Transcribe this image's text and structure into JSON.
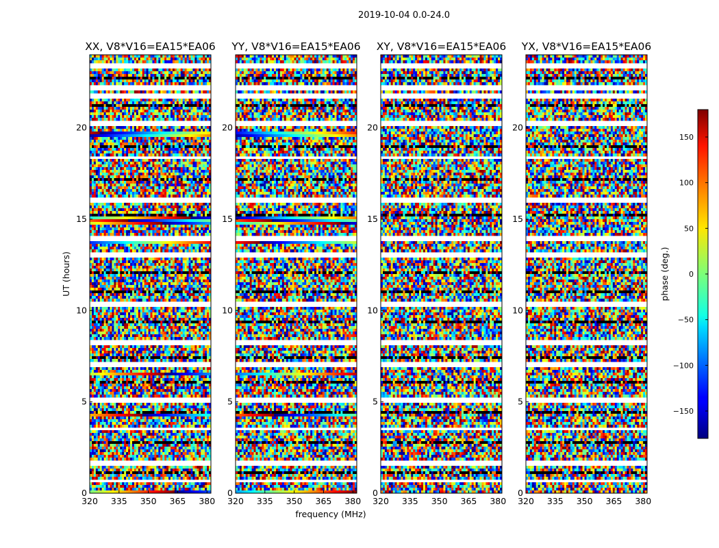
{
  "chart_data": {
    "type": "heatmap",
    "title": "2019-10-04 0.0-24.0",
    "xlabel": "frequency (MHz)",
    "ylabel": "UT (hours)",
    "xlim": [
      320,
      382
    ],
    "ylim": [
      0,
      24
    ],
    "xticks": [
      "320",
      "335",
      "350",
      "365",
      "380"
    ],
    "yticks": [
      "0",
      "5",
      "10",
      "15",
      "20"
    ],
    "panels": [
      {
        "title": "XX, V8*V16=EA15*EA06"
      },
      {
        "title": "YY, V8*V16=EA15*EA06"
      },
      {
        "title": "XY, V8*V16=EA15*EA06"
      },
      {
        "title": "YX, V8*V16=EA15*EA06"
      }
    ],
    "colorbar": {
      "label": "phase (deg.)",
      "range": [
        -180,
        180
      ],
      "colormap": "jet",
      "ticks": [
        "150",
        "100",
        "50",
        "0",
        "−50",
        "−100",
        "−150"
      ]
    }
  }
}
